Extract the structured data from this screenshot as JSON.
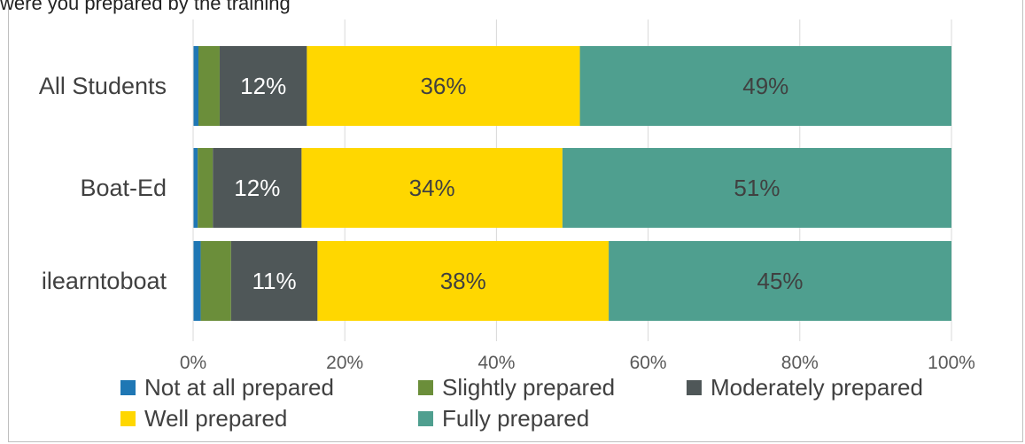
{
  "caption": "were you prepared by the training",
  "chart_data": {
    "type": "stacked-bar-horizontal",
    "title": "",
    "xlabel": "",
    "ylabel": "",
    "xlim": [
      0,
      100
    ],
    "x_ticks": [
      "0%",
      "20%",
      "40%",
      "60%",
      "80%",
      "100%"
    ],
    "grid": true,
    "legend_position": "bottom",
    "categories": [
      "All Students",
      "Boat-Ed",
      "ilearntoboat"
    ],
    "series": [
      {
        "name": "Not at all prepared",
        "color": "#1f77b4",
        "values": [
          0.7,
          0.6,
          1.0
        ],
        "labels": [
          "",
          "",
          ""
        ]
      },
      {
        "name": "Slightly prepared",
        "color": "#6b8e3a",
        "values": [
          2.8,
          2.0,
          4.0
        ],
        "labels": [
          "",
          "",
          ""
        ]
      },
      {
        "name": "Moderately prepared",
        "color": "#4f5758",
        "values": [
          11.5,
          11.7,
          11.4
        ],
        "labels": [
          "12%",
          "12%",
          "11%"
        ]
      },
      {
        "name": "Well prepared",
        "color": "#ffd700",
        "values": [
          36.0,
          34.4,
          38.4
        ],
        "labels": [
          "36%",
          "34%",
          "38%"
        ]
      },
      {
        "name": "Fully prepared",
        "color": "#4f9f8f",
        "values": [
          49.0,
          51.3,
          45.2
        ],
        "labels": [
          "49%",
          "51%",
          "45%"
        ]
      }
    ]
  }
}
